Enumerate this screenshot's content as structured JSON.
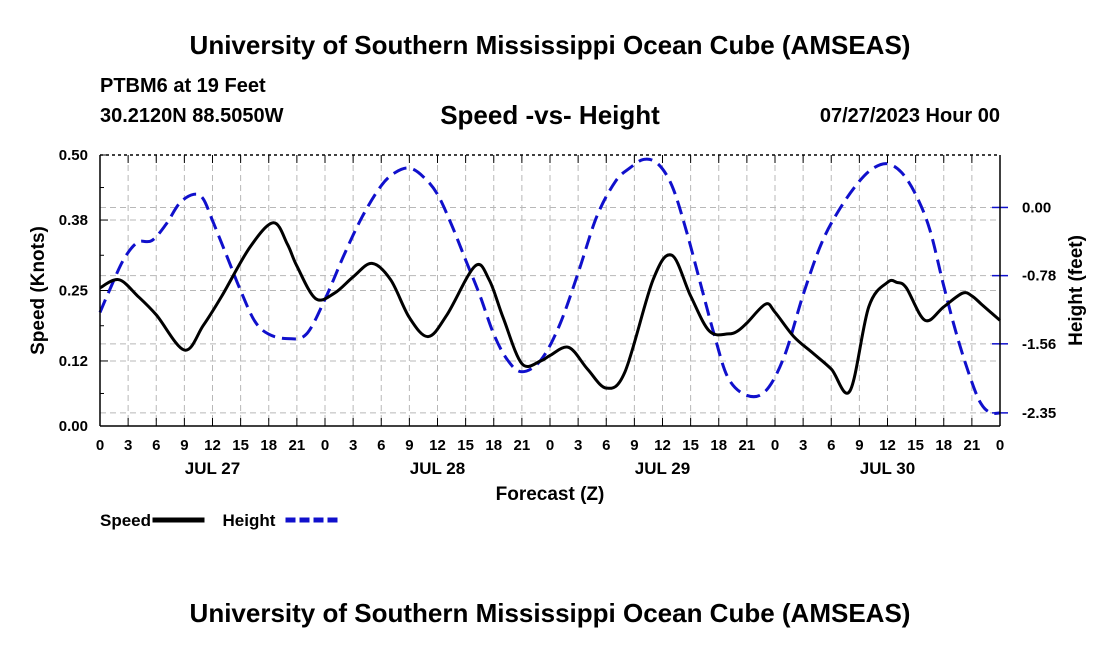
{
  "header": {
    "title": "University of Southern Mississippi Ocean Cube (AMSEAS)",
    "station": "PTBM6 at 19 Feet",
    "coords": "30.2120N  88.5050W",
    "subtitle": "Speed -vs- Height",
    "datetime": "07/27/2023 Hour 00"
  },
  "footer": {
    "title": "University of Southern Mississippi Ocean Cube (AMSEAS)"
  },
  "chart_data": {
    "type": "line",
    "title": "Speed -vs- Height",
    "xlabel": "Forecast (Z)",
    "ylabel": "Speed (Knots)",
    "y2label": "Height (feet)",
    "x_unit": "hours since 07/27/2023 00Z",
    "xlim": [
      0,
      96
    ],
    "ylim": [
      0,
      0.5
    ],
    "y2lim": [
      -2.5,
      0.6
    ],
    "x_tick_labels": [
      "0",
      "3",
      "6",
      "9",
      "12",
      "15",
      "18",
      "21",
      "0",
      "3",
      "6",
      "9",
      "12",
      "15",
      "18",
      "21",
      "0",
      "3",
      "6",
      "9",
      "12",
      "15",
      "18",
      "21",
      "0",
      "3",
      "6",
      "9",
      "12",
      "15",
      "18",
      "21",
      "0"
    ],
    "day_labels": [
      "JUL 27",
      "JUL 28",
      "JUL 29",
      "JUL 30"
    ],
    "y_ticks": [
      "0.00",
      "0.12",
      "0.25",
      "0.38",
      "0.50"
    ],
    "y2_ticks": [
      "-2.35",
      "-1.56",
      "-0.78",
      "0.00"
    ],
    "series": [
      {
        "name": "Speed",
        "axis": "left",
        "color": "#000000",
        "dash": "solid",
        "x": [
          0,
          2,
          4,
          6,
          9,
          11,
          13,
          16,
          18.5,
          20,
          21,
          23,
          25,
          27,
          29,
          31,
          33,
          35,
          37,
          40,
          41.5,
          43,
          45,
          47,
          48,
          50,
          52,
          54,
          56,
          59,
          61,
          63,
          65,
          67,
          68,
          69,
          71,
          72,
          74,
          76,
          78,
          80,
          82,
          84,
          85,
          86,
          88,
          90,
          92,
          93,
          94,
          95,
          96
        ],
        "values": [
          0.255,
          0.27,
          0.24,
          0.205,
          0.14,
          0.185,
          0.24,
          0.33,
          0.375,
          0.335,
          0.295,
          0.235,
          0.245,
          0.275,
          0.3,
          0.27,
          0.2,
          0.165,
          0.205,
          0.295,
          0.27,
          0.2,
          0.115,
          0.12,
          0.13,
          0.145,
          0.105,
          0.07,
          0.1,
          0.27,
          0.315,
          0.24,
          0.175,
          0.17,
          0.175,
          0.19,
          0.225,
          0.21,
          0.165,
          0.135,
          0.105,
          0.065,
          0.22,
          0.265,
          0.265,
          0.255,
          0.195,
          0.22,
          0.245,
          0.24,
          0.225,
          0.21,
          0.195
        ]
      },
      {
        "name": "Height",
        "axis": "right",
        "color": "#1010cc",
        "dash": "dashed",
        "x": [
          0,
          1,
          2.5,
          4,
          5.5,
          7,
          8.5,
          10,
          11,
          12,
          13.5,
          15,
          16.5,
          18,
          20,
          22,
          24,
          26,
          28,
          30,
          31.5,
          33,
          34.5,
          36,
          37.5,
          39,
          40.5,
          42,
          43.5,
          45,
          47,
          49,
          51,
          53,
          55,
          56.5,
          58,
          59.5,
          61,
          62.5,
          64,
          65.5,
          67,
          69,
          71,
          73,
          75,
          77,
          79,
          81,
          82.5,
          84,
          85.5,
          87,
          88.5,
          90,
          91.5,
          93,
          94,
          95,
          96
        ],
        "values": [
          -1.2,
          -0.95,
          -0.6,
          -0.4,
          -0.38,
          -0.2,
          0.05,
          0.15,
          0.1,
          -0.15,
          -0.55,
          -0.95,
          -1.3,
          -1.45,
          -1.5,
          -1.45,
          -1.05,
          -0.55,
          -0.1,
          0.25,
          0.4,
          0.45,
          0.35,
          0.15,
          -0.2,
          -0.6,
          -1.0,
          -1.45,
          -1.75,
          -1.88,
          -1.75,
          -1.35,
          -0.75,
          -0.1,
          0.3,
          0.45,
          0.55,
          0.5,
          0.25,
          -0.25,
          -0.85,
          -1.45,
          -1.95,
          -2.15,
          -2.1,
          -1.7,
          -1.0,
          -0.4,
          0.0,
          0.3,
          0.45,
          0.5,
          0.4,
          0.15,
          -0.25,
          -0.9,
          -1.5,
          -2.0,
          -2.25,
          -2.35,
          -2.35
        ]
      }
    ],
    "legend": [
      {
        "label": "Speed",
        "color": "#000000",
        "dash": "solid"
      },
      {
        "label": "Height",
        "color": "#1010cc",
        "dash": "dashed"
      }
    ],
    "grid": true,
    "legend_position": "bottom-left"
  }
}
